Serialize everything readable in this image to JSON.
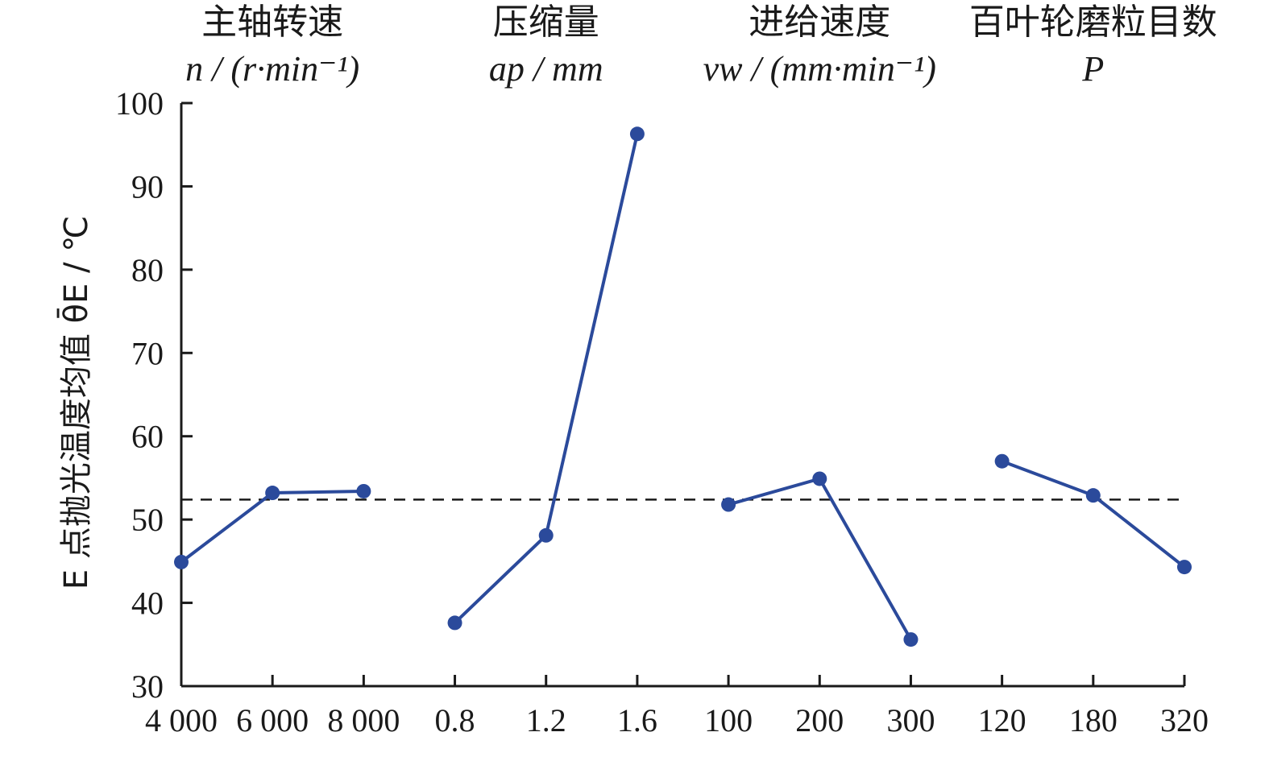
{
  "chart_data": {
    "type": "line",
    "ylabel": "E 点抛光温度均值 θ̄E / ℃",
    "ylim": [
      30,
      100
    ],
    "yticks": [
      30,
      40,
      50,
      60,
      70,
      80,
      90,
      100
    ],
    "reference_line": {
      "value": 52.4,
      "style": "dashed"
    },
    "groups": [
      {
        "title": "主轴转速",
        "unit": "n / (r·min⁻¹)",
        "categories": [
          "4 000",
          "6 000",
          "8 000"
        ],
        "values": [
          44.9,
          53.2,
          53.4
        ]
      },
      {
        "title": "压缩量",
        "unit": "ap / mm",
        "categories": [
          "0.8",
          "1.2",
          "1.6"
        ],
        "values": [
          37.6,
          48.1,
          96.3
        ]
      },
      {
        "title": "进给速度",
        "unit": "vw / (mm·min⁻¹)",
        "categories": [
          "100",
          "200",
          "300"
        ],
        "values": [
          51.8,
          54.9,
          35.6
        ]
      },
      {
        "title": "百叶轮磨粒目数",
        "unit": "P",
        "categories": [
          "120",
          "180",
          "320"
        ],
        "values": [
          57.0,
          52.9,
          44.3
        ]
      }
    ],
    "series_color": "#2b4a9b",
    "grid": false
  }
}
